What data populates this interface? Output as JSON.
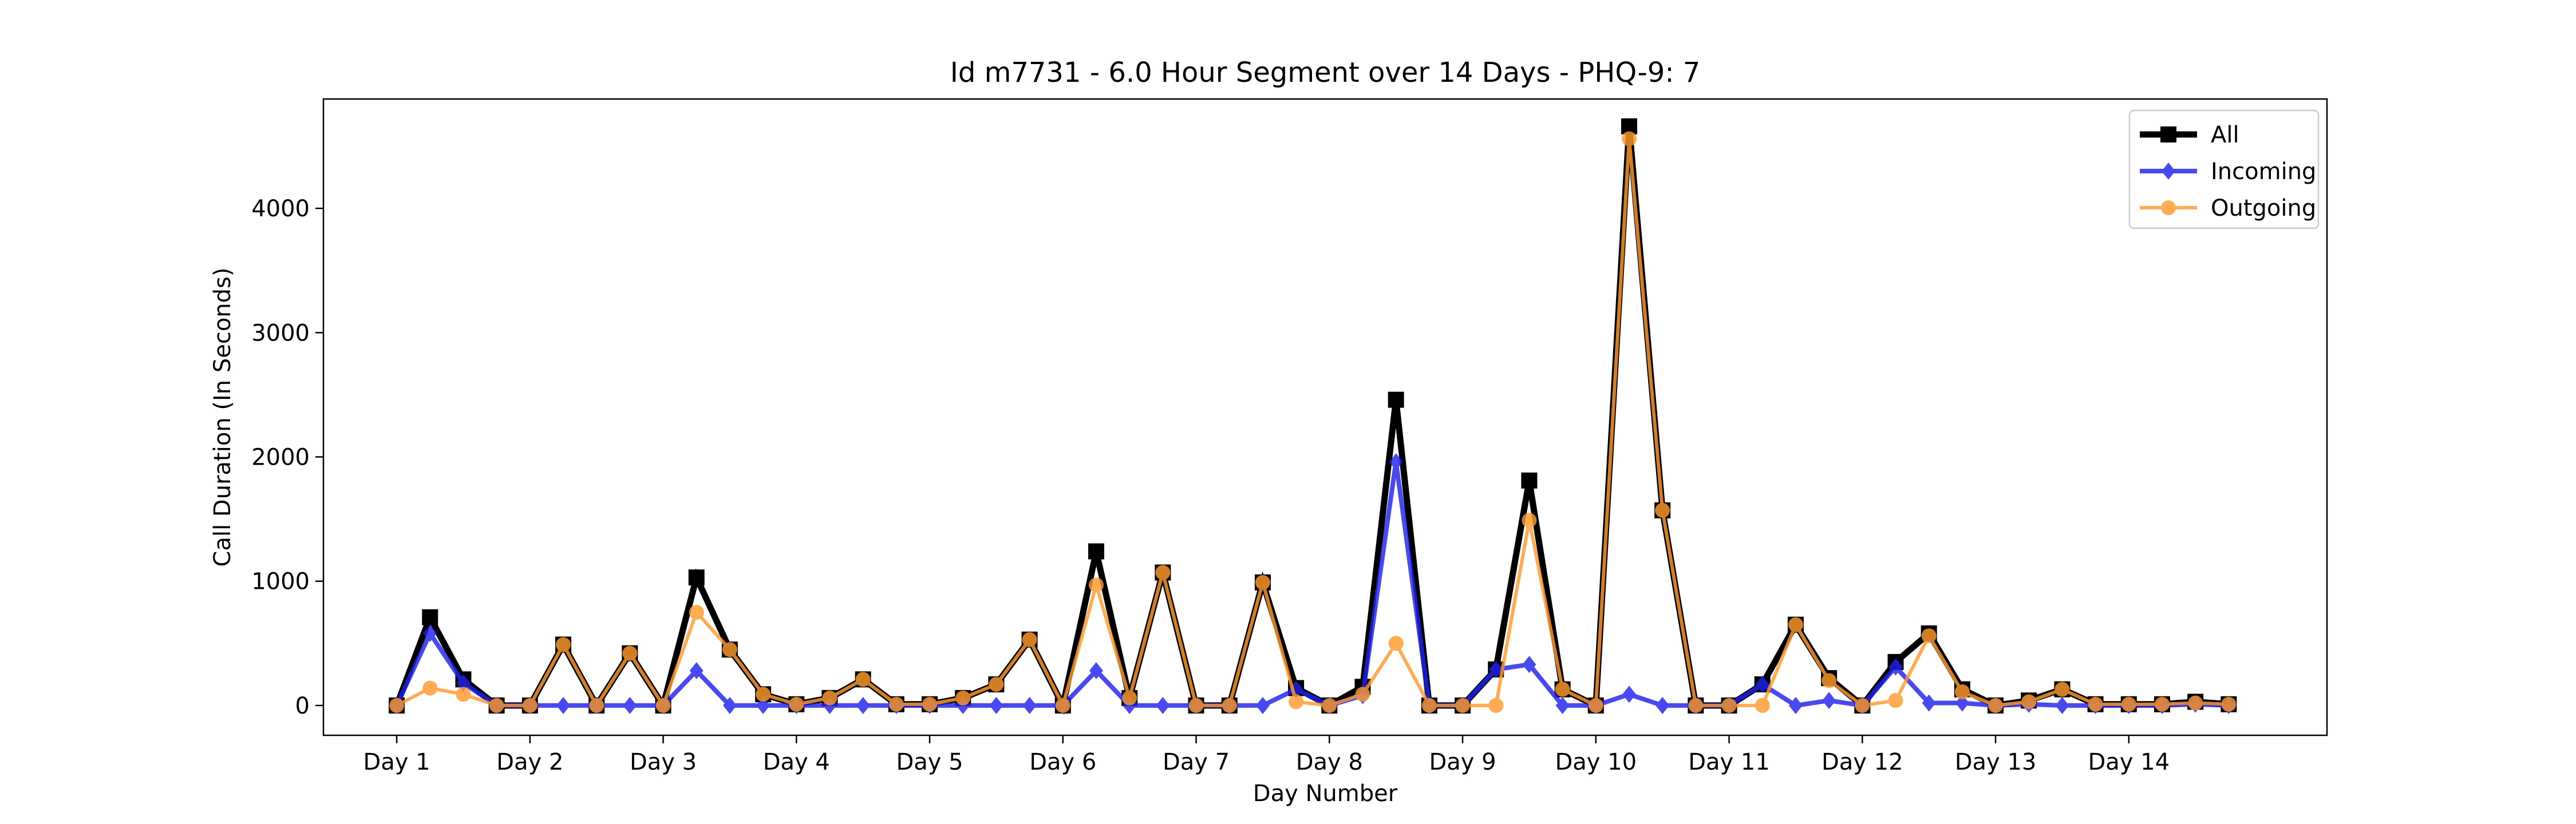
{
  "chart_data": {
    "type": "line",
    "title": "Id m7731 - 6.0 Hour Segment over 14 Days - PHQ-9: 7",
    "xlabel": "Day Number",
    "ylabel": "Call Duration (In Seconds)",
    "x_tick_labels": [
      "Day 1",
      "Day 2",
      "Day 3",
      "Day 4",
      "Day 5",
      "Day 6",
      "Day 7",
      "Day 8",
      "Day 9",
      "Day 10",
      "Day 11",
      "Day 12",
      "Day 13",
      "Day 14"
    ],
    "y_ticks": [
      0,
      1000,
      2000,
      3000,
      4000
    ],
    "ylim": [
      -240,
      4880
    ],
    "legend_position": "top-right",
    "grid": false,
    "points_per_day": 4,
    "series": [
      {
        "name": "All",
        "color": "#000000",
        "marker": "square",
        "values": [
          0,
          710,
          210,
          0,
          0,
          490,
          0,
          420,
          0,
          1030,
          450,
          90,
          10,
          60,
          210,
          10,
          10,
          60,
          170,
          530,
          0,
          1240,
          60,
          1070,
          0,
          0,
          990,
          140,
          0,
          150,
          2460,
          0,
          0,
          290,
          1810,
          130,
          0,
          4660,
          1570,
          0,
          0,
          170,
          650,
          220,
          0,
          350,
          580,
          130,
          0,
          40,
          130,
          10,
          10,
          10,
          30,
          10
        ]
      },
      {
        "name": "Incoming",
        "color": "#2222ee",
        "marker": "diamond",
        "values": [
          0,
          580,
          180,
          0,
          0,
          0,
          0,
          0,
          0,
          280,
          0,
          0,
          0,
          0,
          0,
          0,
          0,
          0,
          0,
          0,
          0,
          280,
          0,
          0,
          0,
          0,
          0,
          130,
          0,
          80,
          1960,
          0,
          0,
          290,
          330,
          0,
          0,
          90,
          0,
          0,
          0,
          170,
          0,
          40,
          0,
          310,
          20,
          20,
          0,
          10,
          0,
          0,
          0,
          0,
          10,
          0
        ]
      },
      {
        "name": "Outgoing",
        "color": "#ff9a2e",
        "marker": "circle",
        "values": [
          0,
          140,
          90,
          0,
          0,
          490,
          0,
          420,
          0,
          750,
          450,
          90,
          10,
          60,
          210,
          10,
          10,
          60,
          170,
          530,
          0,
          970,
          60,
          1070,
          0,
          0,
          990,
          30,
          0,
          90,
          500,
          0,
          0,
          0,
          1490,
          130,
          0,
          4560,
          1570,
          0,
          0,
          0,
          650,
          200,
          0,
          40,
          560,
          110,
          0,
          30,
          130,
          10,
          10,
          10,
          20,
          10
        ]
      }
    ]
  }
}
